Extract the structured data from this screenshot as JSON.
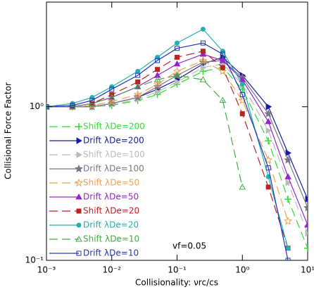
{
  "chart_data": {
    "type": "line",
    "xlabel": "Collisionality: νrc/cs",
    "ylabel": "Collisional Force Factor",
    "annotation": "vf=0.05",
    "log_x": true,
    "log_y": true,
    "xlim": [
      0.001,
      10
    ],
    "ylim": [
      0.1,
      4.8
    ],
    "xticks": [
      {
        "value": 0.001,
        "label": "10⁻³"
      },
      {
        "value": 0.01,
        "label": "10⁻²"
      },
      {
        "value": 0.1,
        "label": "10⁻¹"
      },
      {
        "value": 1,
        "label": "10⁰"
      },
      {
        "value": 10,
        "label": "10¹"
      }
    ],
    "yticks": [
      {
        "value": 0.1,
        "label": "10⁻¹"
      },
      {
        "value": 1,
        "label": "10⁰"
      }
    ],
    "legend": "lower left",
    "x": [
      0.001,
      0.0025,
      0.005,
      0.01,
      0.025,
      0.05,
      0.1,
      0.25,
      0.5,
      1,
      2.5,
      5,
      10
    ],
    "series": [
      {
        "name": "Shift λDe=200",
        "color": "#33dd33",
        "marker": "plus",
        "dashed": true,
        "values": [
          1.0,
          1.0,
          1.0,
          1.02,
          1.1,
          1.2,
          1.4,
          1.7,
          1.8,
          1.3,
          0.6,
          0.25,
          0.12
        ]
      },
      {
        "name": "Drift λDe=200",
        "color": "#1a1aa0",
        "marker": "tri-right",
        "dashed": false,
        "values": [
          1.0,
          1.0,
          1.0,
          1.05,
          1.15,
          1.3,
          1.5,
          1.9,
          2.1,
          1.6,
          1.0,
          0.5,
          0.25
        ]
      },
      {
        "name": "Shift λDe=100",
        "color": "#bbbbbb",
        "marker": "tri-right",
        "dashed": true,
        "values": [
          1.0,
          1.0,
          1.0,
          1.03,
          1.12,
          1.25,
          1.45,
          1.8,
          1.9,
          1.4,
          0.7,
          0.32,
          0.15
        ]
      },
      {
        "name": "Drift λDe=100",
        "color": "#777788",
        "marker": "star",
        "dashed": false,
        "values": [
          1.0,
          1.0,
          1.0,
          1.05,
          1.15,
          1.35,
          1.6,
          1.95,
          2.0,
          1.55,
          0.9,
          0.45,
          0.22
        ]
      },
      {
        "name": "Shift λDe=50",
        "color": "#f0a050",
        "marker": "star-open",
        "dashed": true,
        "values": [
          1.0,
          1.0,
          1.02,
          1.08,
          1.2,
          1.4,
          1.7,
          2.0,
          1.7,
          1.1,
          0.45,
          0.18,
          null
        ]
      },
      {
        "name": "Drift λDe=50",
        "color": "#9922cc",
        "marker": "tri-up",
        "dashed": false,
        "values": [
          1.0,
          1.0,
          1.05,
          1.15,
          1.35,
          1.6,
          1.9,
          2.2,
          2.0,
          1.5,
          0.8,
          0.35,
          0.17
        ]
      },
      {
        "name": "Shift λDe=20",
        "color": "#bb2222",
        "marker": "square",
        "dashed": true,
        "values": [
          1.0,
          1.0,
          1.05,
          1.2,
          1.45,
          1.75,
          2.1,
          2.3,
          1.8,
          0.9,
          0.3,
          0.12,
          null
        ]
      },
      {
        "name": "Drift λDe=20",
        "color": "#22b0b0",
        "marker": "circle",
        "dashed": false,
        "values": [
          1.0,
          1.05,
          1.15,
          1.35,
          1.7,
          2.1,
          2.6,
          3.2,
          2.3,
          1.4,
          0.35,
          0.12,
          null
        ]
      },
      {
        "name": "Shift λDe=10",
        "color": "#44aa44",
        "marker": "tri-open",
        "dashed": true,
        "values": [
          1.0,
          1.0,
          1.05,
          1.15,
          1.35,
          1.5,
          1.6,
          1.5,
          1.1,
          0.3,
          null,
          null,
          null
        ]
      },
      {
        "name": "Drift λDe=10",
        "color": "#2233bb",
        "marker": "square-open",
        "dashed": false,
        "values": [
          1.0,
          1.02,
          1.1,
          1.3,
          1.6,
          2.0,
          2.4,
          2.6,
          2.2,
          1.2,
          0.4,
          0.1,
          null
        ]
      }
    ]
  }
}
